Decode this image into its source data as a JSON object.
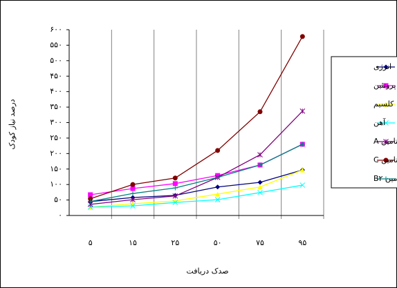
{
  "chart_data": {
    "type": "line",
    "y_label": "درصد نیاز کودک",
    "x_label": "صدک دریافت",
    "categories": [
      "۵",
      "۱۵",
      "۲۵",
      "۵۰",
      "۷۵",
      "۹۵"
    ],
    "ylim": [
      0,
      600
    ],
    "yticks": [
      {
        "value": 0,
        "label": "۰"
      },
      {
        "value": 50,
        "label": "۵۰"
      },
      {
        "value": 100,
        "label": "۱۰۰"
      },
      {
        "value": 150,
        "label": "۱۵۰"
      },
      {
        "value": 200,
        "label": "۲۰۰"
      },
      {
        "value": 250,
        "label": "۲۵۰"
      },
      {
        "value": 300,
        "label": "۳۰۰"
      },
      {
        "value": 350,
        "label": "۳۵۰"
      },
      {
        "value": 400,
        "label": "۴۰۰"
      },
      {
        "value": 450,
        "label": "۴۵۰"
      },
      {
        "value": 500,
        "label": "۵۰۰"
      },
      {
        "value": 550,
        "label": "۵۵۰"
      },
      {
        "value": 600,
        "label": "۶۰۰"
      }
    ],
    "grid": true,
    "legend": "right",
    "series": [
      {
        "name": "انرژی",
        "color": "#000080",
        "marker": "diamond",
        "values": [
          45,
          58,
          65,
          92,
          107,
          147
        ]
      },
      {
        "name": "پروتئین",
        "color": "#ff00ff",
        "marker": "square",
        "values": [
          67,
          87,
          103,
          129,
          163,
          230
        ]
      },
      {
        "name": "کلسیم",
        "color": "#ffff00",
        "marker": "triangle",
        "values": [
          27,
          38,
          47,
          69,
          92,
          147
        ]
      },
      {
        "name": "آهن",
        "color": "#00ffff",
        "marker": "x",
        "values": [
          27,
          31,
          42,
          51,
          74,
          98
        ]
      },
      {
        "name": "ویتامین A",
        "color": "#800080",
        "marker": "star",
        "values": [
          36,
          51,
          63,
          123,
          196,
          337
        ]
      },
      {
        "name": "ویتامین C",
        "color": "#800000",
        "marker": "circle",
        "values": [
          54,
          100,
          121,
          210,
          335,
          578
        ]
      },
      {
        "name": "ویتامین B۲",
        "color": "#008080",
        "marker": "plus",
        "values": [
          45,
          71,
          89,
          123,
          163,
          230
        ]
      }
    ]
  }
}
